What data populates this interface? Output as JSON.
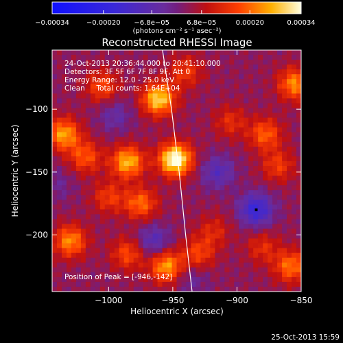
{
  "chart_data": {
    "type": "heatmap",
    "title": "Reconstructed RHESSI Image",
    "xlabel": "Heliocentric X (arcsec)",
    "ylabel": "Heliocentric Y (arcsec)",
    "xlim": [
      -1044,
      -850
    ],
    "ylim": [
      -245,
      -53
    ],
    "x_ticks": [
      -1000,
      -950,
      -900,
      -850
    ],
    "x_tick_labels": [
      "−1000",
      "−950",
      "−900",
      "−850"
    ],
    "y_ticks": [
      -100,
      -150,
      -200
    ],
    "y_tick_labels": [
      "−100",
      "−150",
      "−200"
    ],
    "colorbar": {
      "range": [
        -0.00034,
        0.00034
      ],
      "ticks": [
        -0.00034,
        -0.0002,
        -6.8e-05,
        6.8e-05,
        0.0002,
        0.00034
      ],
      "tick_labels": [
        "−0.00034",
        "−0.00020",
        "−6.8e−05",
        "6.8e−05",
        "0.00020",
        "0.00034"
      ],
      "units_label": "(photons cm⁻² s⁻¹ asec⁻²)"
    },
    "annotations": [
      "24-Oct-2013 20:36:44.000 to 20:41:10.000",
      "Detectors: 3F 5F 6F 7F 8F 9F, Att 0",
      "Energy Range: 12.0 - 25.0 keV",
      "Clean     Total counts: 1.64E+04"
    ],
    "peak_label": "Position of Peak = [-946,-142]",
    "peak_position": [
      -946,
      -142
    ],
    "blobs": [
      {
        "x": -948,
        "y": -140,
        "v": 0.00034
      },
      {
        "x": -961,
        "y": -92,
        "v": 0.00027
      },
      {
        "x": -985,
        "y": -142,
        "v": 0.00024
      },
      {
        "x": -1035,
        "y": -120,
        "v": 0.00022
      },
      {
        "x": -1018,
        "y": -138,
        "v": 0.00015
      },
      {
        "x": -1005,
        "y": -82,
        "v": 0.00014
      },
      {
        "x": -940,
        "y": -70,
        "v": 0.00012
      },
      {
        "x": -855,
        "y": -80,
        "v": 0.0002
      },
      {
        "x": -878,
        "y": -120,
        "v": 0.00016
      },
      {
        "x": -868,
        "y": -145,
        "v": 0.00012
      },
      {
        "x": -975,
        "y": -175,
        "v": 0.00017
      },
      {
        "x": -1000,
        "y": -170,
        "v": 0.00012
      },
      {
        "x": -1030,
        "y": -205,
        "v": 0.0002
      },
      {
        "x": -985,
        "y": -215,
        "v": 0.00014
      },
      {
        "x": -955,
        "y": -225,
        "v": 0.00022
      },
      {
        "x": -930,
        "y": -215,
        "v": 0.00013
      },
      {
        "x": -918,
        "y": -197,
        "v": 9e-05
      },
      {
        "x": -905,
        "y": -110,
        "v": 0.0001
      },
      {
        "x": -858,
        "y": -225,
        "v": 0.00018
      },
      {
        "x": -880,
        "y": -210,
        "v": 0.0001
      },
      {
        "x": -915,
        "y": -150,
        "v": -0.00012
      },
      {
        "x": -885,
        "y": -180,
        "v": -0.0002
      },
      {
        "x": -965,
        "y": -205,
        "v": -0.00012
      },
      {
        "x": -995,
        "y": -105,
        "v": -8e-05
      },
      {
        "x": -935,
        "y": -235,
        "v": -6e-05
      },
      {
        "x": -1040,
        "y": -160,
        "v": -5e-05
      }
    ],
    "limb_line": [
      [
        -958,
        -53
      ],
      [
        -951,
        -100
      ],
      [
        -945,
        -150
      ],
      [
        -940,
        -200
      ],
      [
        -935,
        -245
      ]
    ],
    "grid": false
  },
  "timestamp": "25-Oct-2013 15:59"
}
